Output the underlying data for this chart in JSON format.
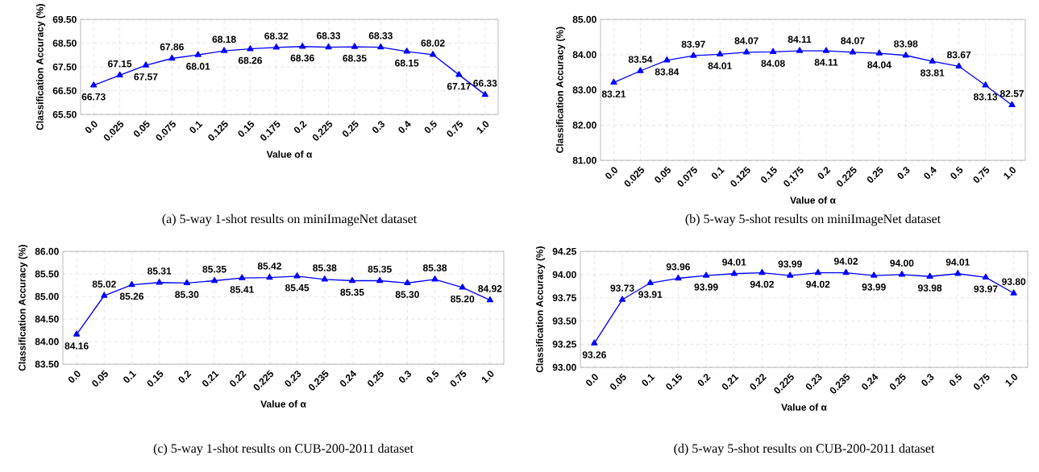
{
  "chart_data": [
    {
      "type": "line",
      "title": "(a) 5-way 1-shot results on miniImageNet dataset",
      "xlabel": "Value of α",
      "ylabel": "Classification Accuracy (%)",
      "color": "#0000ff",
      "marker": "triangle",
      "grid": true,
      "categories": [
        "0.0",
        "0.025",
        "0.05",
        "0.075",
        "0.1",
        "0.125",
        "0.15",
        "0.175",
        "0.2",
        "0.225",
        "0.25",
        "0.3",
        "0.4",
        "0.5",
        "0.75",
        "1.0"
      ],
      "values": [
        66.73,
        67.15,
        67.57,
        67.86,
        68.01,
        68.18,
        68.26,
        68.32,
        68.36,
        68.33,
        68.35,
        68.33,
        68.15,
        68.02,
        67.17,
        66.33
      ],
      "value_labels": [
        "66.73",
        "67.15",
        "67.57",
        "67.86",
        "68.01",
        "68.18",
        "68.26",
        "68.32",
        "68.36",
        "68.33",
        "68.35",
        "68.33",
        "68.15",
        "68.02",
        "67.17",
        "66.33"
      ],
      "ylim": [
        65.5,
        69.5
      ],
      "yticks": [
        {
          "value": 65.5,
          "label": "65.50"
        },
        {
          "value": 66.5,
          "label": "66.50"
        },
        {
          "value": 67.5,
          "label": "67.50"
        },
        {
          "value": 68.5,
          "label": "68.50"
        },
        {
          "value": 69.5,
          "label": "69.50"
        }
      ]
    },
    {
      "type": "line",
      "title": "(b) 5-way 5-shot results on miniImageNet dataset",
      "xlabel": "Value of α",
      "ylabel": "Classification Accuracy (%)",
      "color": "#0000ff",
      "marker": "triangle",
      "grid": true,
      "categories": [
        "0.0",
        "0.025",
        "0.05",
        "0.075",
        "0.1",
        "0.125",
        "0.15",
        "0.175",
        "0.2",
        "0.225",
        "0.25",
        "0.3",
        "0.4",
        "0.5",
        "0.75",
        "1.0"
      ],
      "values": [
        83.21,
        83.54,
        83.84,
        83.97,
        84.01,
        84.07,
        84.08,
        84.11,
        84.11,
        84.07,
        84.04,
        83.98,
        83.81,
        83.67,
        83.13,
        82.57
      ],
      "value_labels": [
        "83.21",
        "83.54",
        "83.84",
        "83.97",
        "84.01",
        "84.07",
        "84.08",
        "84.11",
        "84.11",
        "84.07",
        "84.04",
        "83.98",
        "83.81",
        "83.67",
        "83.13",
        "82.57"
      ],
      "ylim": [
        81,
        85
      ],
      "yticks": [
        {
          "value": 81,
          "label": "81.00"
        },
        {
          "value": 82,
          "label": "82.00"
        },
        {
          "value": 83,
          "label": "83.00"
        },
        {
          "value": 84,
          "label": "84.00"
        },
        {
          "value": 85,
          "label": "85.00"
        }
      ]
    },
    {
      "type": "line",
      "title": "(c) 5-way 1-shot results on CUB-200-2011 dataset",
      "xlabel": "Value of α",
      "ylabel": "Classification Accuracy (%)",
      "color": "#0000ff",
      "marker": "triangle",
      "grid": true,
      "categories": [
        "0.0",
        "0.05",
        "0.1",
        "0.15",
        "0.2",
        "0.21",
        "0.22",
        "0.225",
        "0.23",
        "0.235",
        "0.24",
        "0.25",
        "0.3",
        "0.5",
        "0.75",
        "1.0"
      ],
      "values": [
        84.16,
        85.02,
        85.26,
        85.31,
        85.3,
        85.35,
        85.41,
        85.42,
        85.45,
        85.38,
        85.35,
        85.35,
        85.3,
        85.38,
        85.2,
        84.92
      ],
      "value_labels": [
        "84.16",
        "85.02",
        "85.26",
        "85.31",
        "85.30",
        "85.35",
        "85.41",
        "85.42",
        "85.45",
        "85.38",
        "85.35",
        "85.35",
        "85.30",
        "85.38",
        "85.20",
        "84.92"
      ],
      "ylim": [
        83.5,
        86
      ],
      "yticks": [
        {
          "value": 83.5,
          "label": "83.50"
        },
        {
          "value": 84,
          "label": "84.00"
        },
        {
          "value": 84.5,
          "label": "84.50"
        },
        {
          "value": 85,
          "label": "85.00"
        },
        {
          "value": 85.5,
          "label": "85.50"
        },
        {
          "value": 86,
          "label": "86.00"
        }
      ]
    },
    {
      "type": "line",
      "title": "(d) 5-way 5-shot results on CUB-200-2011 dataset",
      "xlabel": "Value of α",
      "ylabel": "Classification Accuracy (%)",
      "color": "#0000ff",
      "marker": "triangle",
      "grid": true,
      "categories": [
        "0.0",
        "0.05",
        "0.1",
        "0.15",
        "0.2",
        "0.21",
        "0.22",
        "0.225",
        "0.23",
        "0.235",
        "0.24",
        "0.25",
        "0.3",
        "0.5",
        "0.75",
        "1.0"
      ],
      "values": [
        93.26,
        93.73,
        93.91,
        93.96,
        93.99,
        94.01,
        94.02,
        93.99,
        94.02,
        94.02,
        93.99,
        94.0,
        93.98,
        94.01,
        93.97,
        93.8
      ],
      "value_labels": [
        "93.26",
        "93.73",
        "93.91",
        "93.96",
        "93.99",
        "94.01",
        "94.02",
        "93.99",
        "94.02",
        "94.02",
        "93.99",
        "94.00",
        "93.98",
        "94.01",
        "93.97",
        "93.80"
      ],
      "ylim": [
        93,
        94.25
      ],
      "yticks": [
        {
          "value": 93,
          "label": "93.00"
        },
        {
          "value": 93.25,
          "label": "93.25"
        },
        {
          "value": 93.5,
          "label": "93.50"
        },
        {
          "value": 93.75,
          "label": "93.75"
        },
        {
          "value": 94,
          "label": "94.00"
        },
        {
          "value": 94.25,
          "label": "94.25"
        }
      ]
    }
  ]
}
